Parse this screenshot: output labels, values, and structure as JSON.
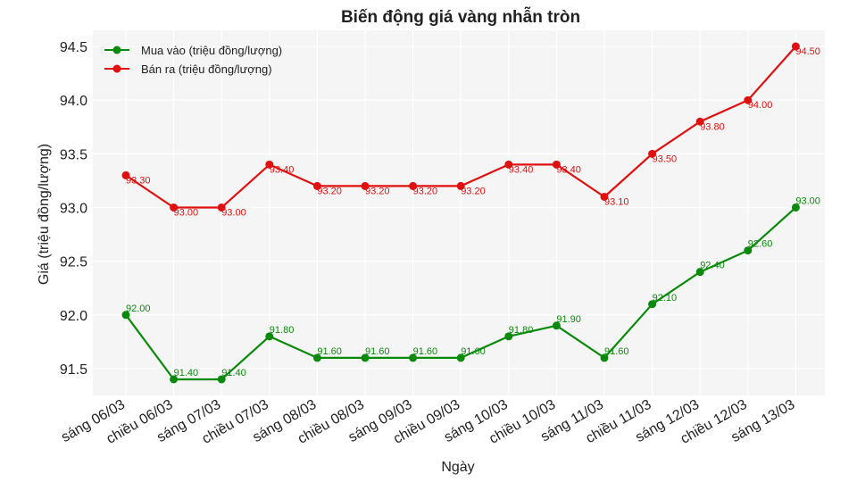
{
  "chart_data": {
    "type": "line",
    "title": "Biến động giá vàng nhẫn tròn",
    "xlabel": "Ngày",
    "ylabel": "Giá (triệu đồng/lượng)",
    "categories": [
      "sáng 06/03",
      "chiều 06/03",
      "sáng 07/03",
      "chiều 07/03",
      "sáng 08/03",
      "chiều 08/03",
      "sáng 09/03",
      "chiều 09/03",
      "sáng 10/03",
      "chiều 10/03",
      "sáng 11/03",
      "chiều 11/03",
      "sáng 12/03",
      "chiều 12/03",
      "sáng 13/03"
    ],
    "ylim": [
      91.25,
      94.65
    ],
    "yticks": [
      91.5,
      92.0,
      92.5,
      93.0,
      93.5,
      94.0,
      94.5
    ],
    "ytick_labels": [
      "91.5",
      "92.0",
      "92.5",
      "93.0",
      "93.5",
      "94.0",
      "94.5"
    ],
    "grid": true,
    "legend_position": "top-left",
    "series": [
      {
        "name": "Mua vào (triệu đồng/lượng)",
        "color": "#0a8a0a",
        "values": [
          92.0,
          91.4,
          91.4,
          91.8,
          91.6,
          91.6,
          91.6,
          91.6,
          91.8,
          91.9,
          91.6,
          92.1,
          92.4,
          92.6,
          93.0
        ],
        "labels": [
          "92.00",
          "91.40",
          "91.40",
          "91.80",
          "91.60",
          "91.60",
          "91.60",
          "91.60",
          "91.80",
          "91.90",
          "91.60",
          "92.10",
          "92.40",
          "92.60",
          "93.00"
        ]
      },
      {
        "name": "Bán ra (triệu đồng/lượng)",
        "color": "#e01010",
        "values": [
          93.3,
          93.0,
          93.0,
          93.4,
          93.2,
          93.2,
          93.2,
          93.2,
          93.4,
          93.4,
          93.1,
          93.5,
          93.8,
          94.0,
          94.5
        ],
        "labels": [
          "93.30",
          "93.00",
          "93.00",
          "93.40",
          "93.20",
          "93.20",
          "93.20",
          "93.20",
          "93.40",
          "93.40",
          "93.10",
          "93.50",
          "93.80",
          "94.00",
          "94.50"
        ]
      }
    ]
  }
}
